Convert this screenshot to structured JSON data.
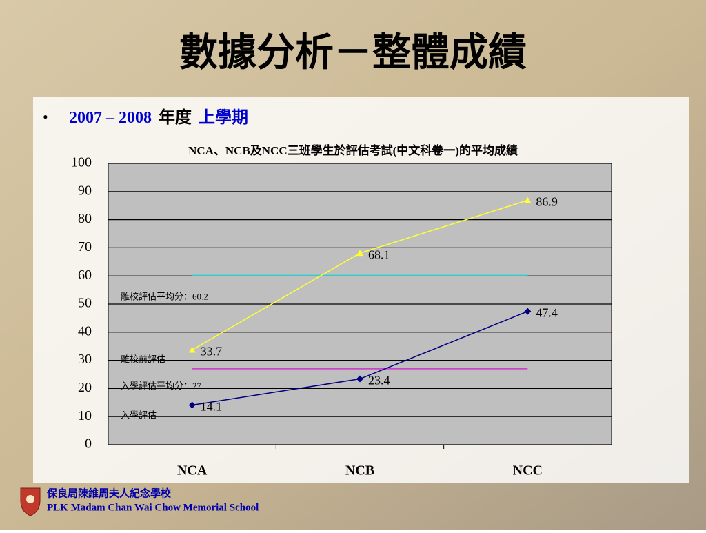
{
  "header": {
    "title": "數據分析－整體成績"
  },
  "bullet": {
    "years": "2007 – 2008",
    "word": "年度",
    "term": "上學期"
  },
  "footer": {
    "school_zh": "保良局陳維周夫人紀念學校",
    "school_en": "PLK Madam Chan Wai Chow Memorial School"
  },
  "chart_data": {
    "type": "line",
    "title": "NCA、NCB及NCC三班學生於評估考試(中文科卷一)的平均成績",
    "categories": [
      "NCA",
      "NCB",
      "NCC"
    ],
    "series": [
      {
        "name": "離校前評估",
        "color": "#ffff33",
        "marker": "triangle",
        "values": [
          33.7,
          68.1,
          86.9
        ]
      },
      {
        "name": "入學評估",
        "color": "#000080",
        "marker": "diamond",
        "values": [
          14.1,
          23.4,
          47.4
        ]
      }
    ],
    "reference_lines": [
      {
        "value": 60.2,
        "label": "離校評估平均分：60.2",
        "color": "#33cccc"
      },
      {
        "value": 27,
        "label": "入學評估平均分：27",
        "color": "#cc33cc"
      }
    ],
    "ylim": [
      0,
      100
    ],
    "yticks": [
      0,
      10,
      20,
      30,
      40,
      50,
      60,
      70,
      80,
      90,
      100
    ],
    "grid": true
  }
}
